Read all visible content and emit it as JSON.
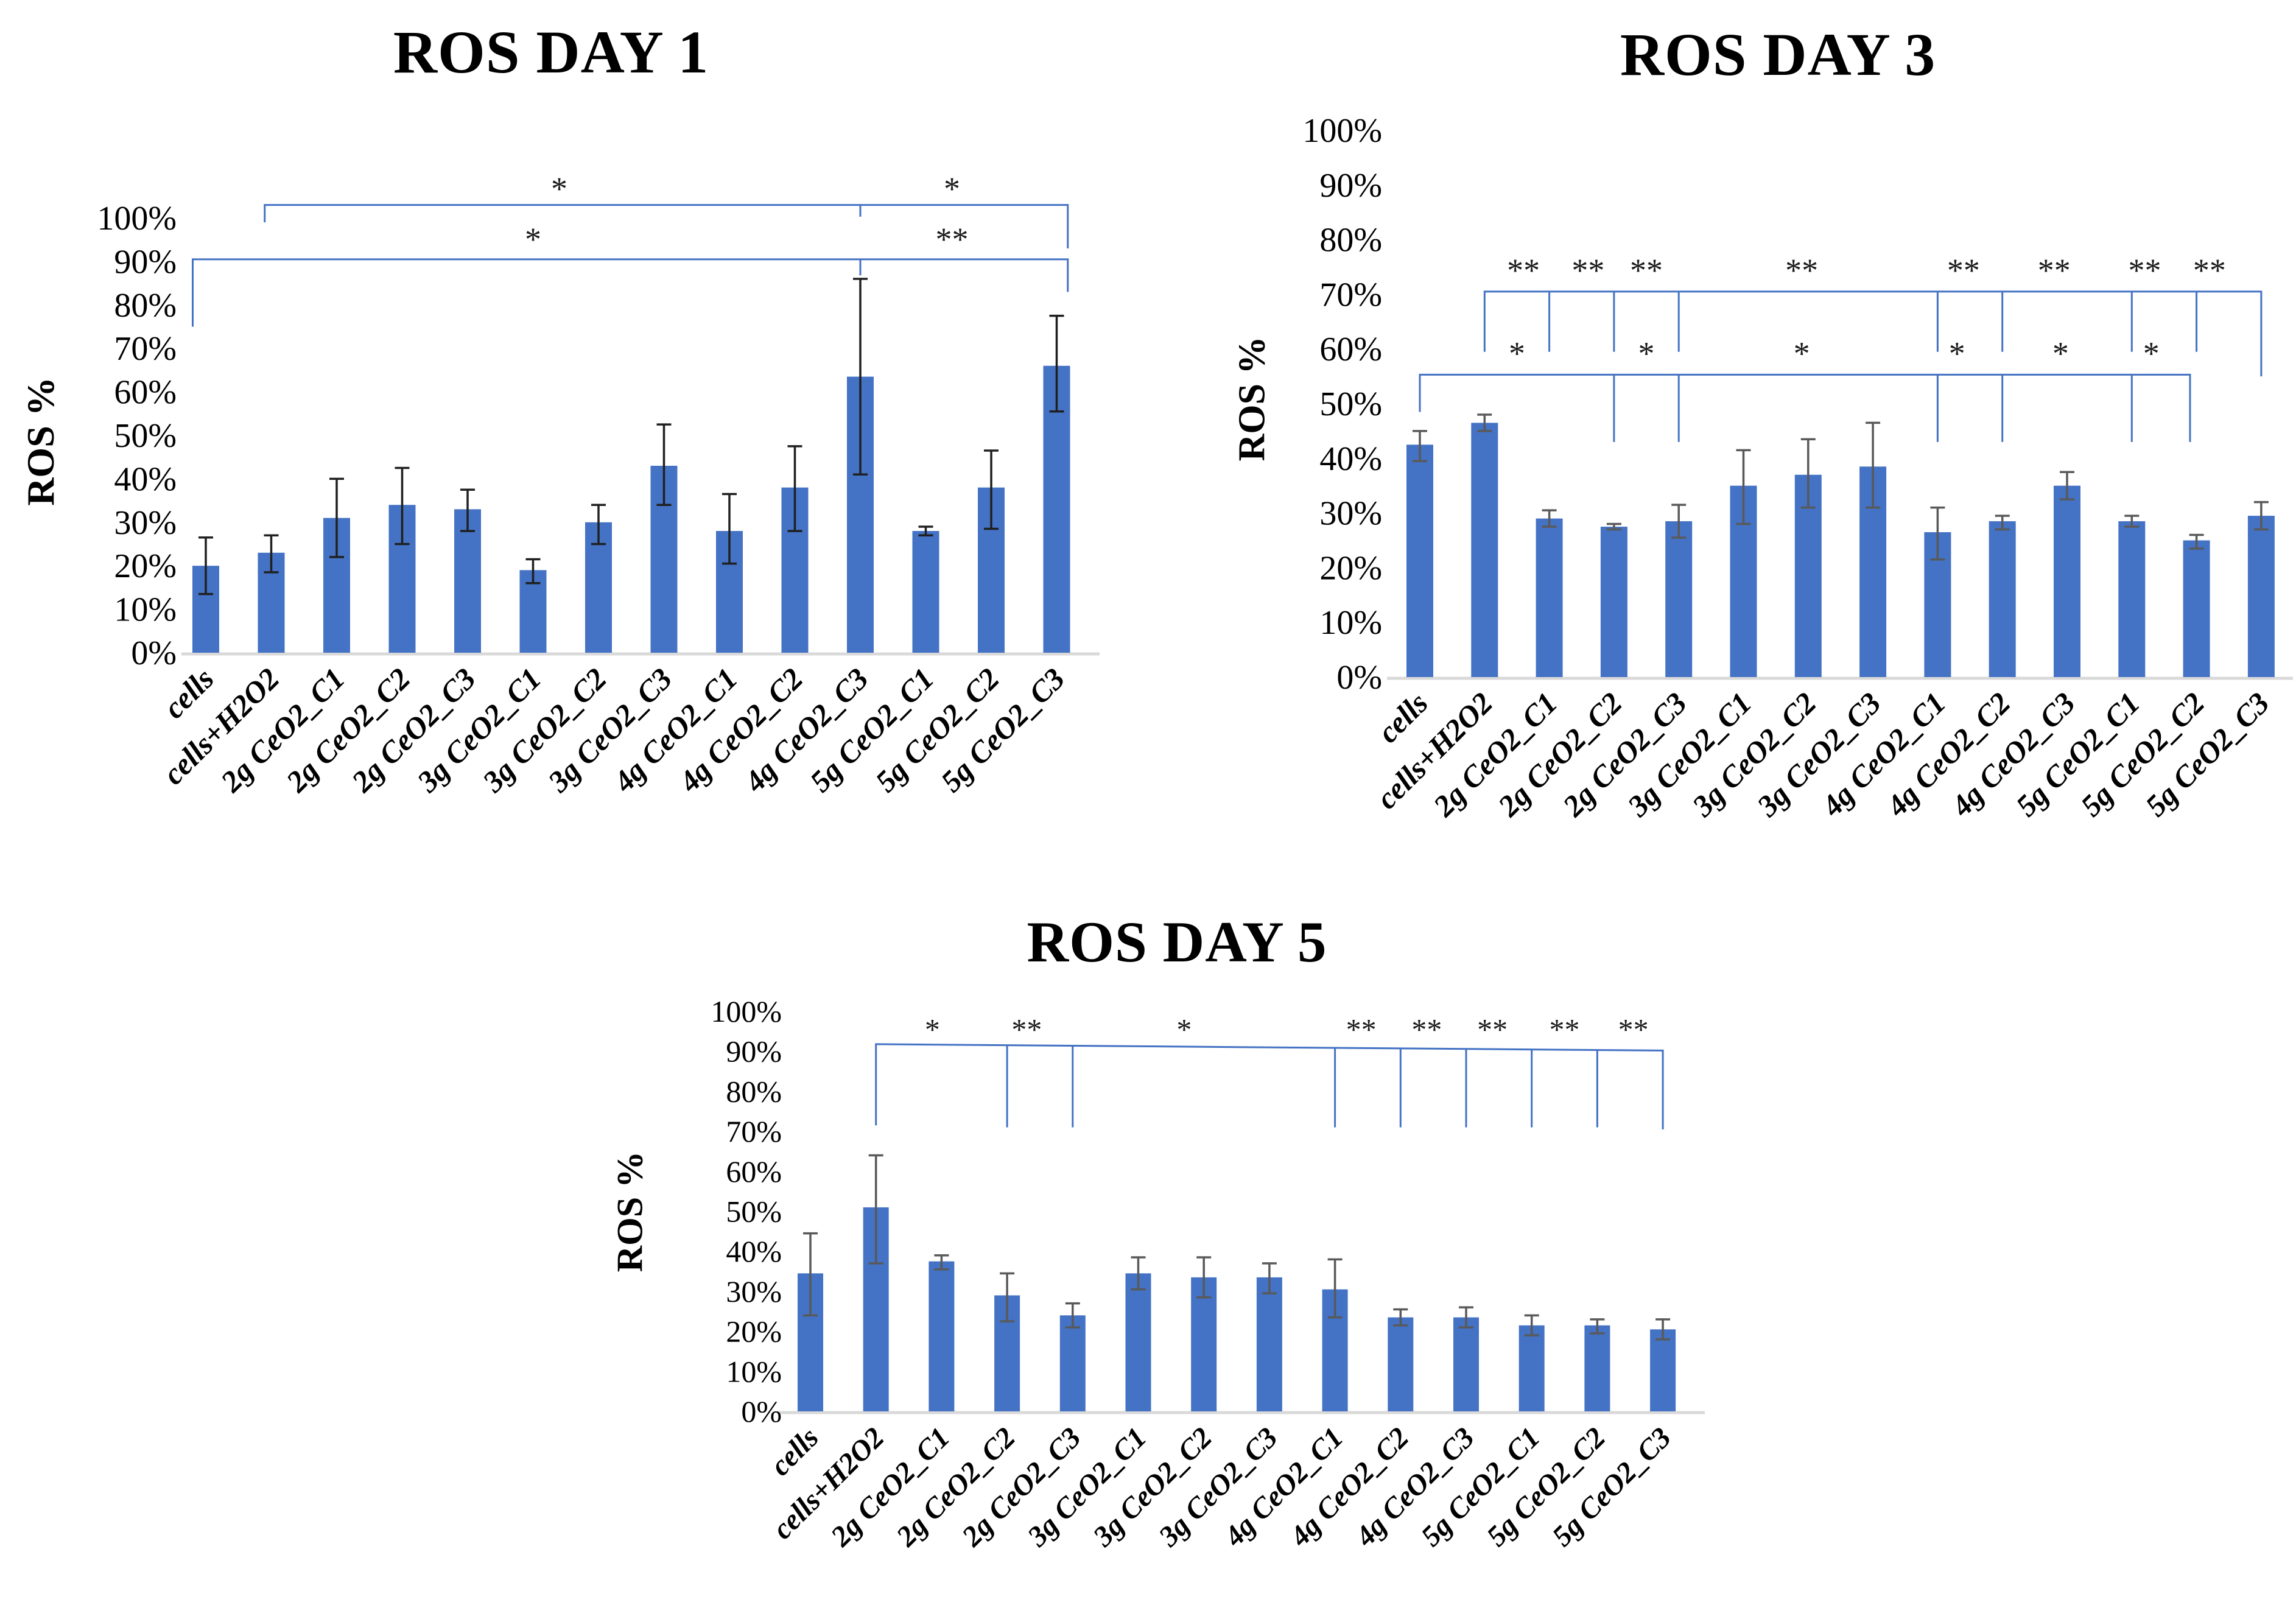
{
  "figure": {
    "background": "#ffffff",
    "bar_color": "#4472C4",
    "bracket_color": "#4472C4",
    "axis_line_color": "#d9d9d9",
    "error_color_day1": "#1f1f1f",
    "error_color_day3": "#595959",
    "error_color_day5": "#595959"
  },
  "y_ticks": [
    "0%",
    "10%",
    "20%",
    "30%",
    "40%",
    "50%",
    "60%",
    "70%",
    "80%",
    "90%",
    "100%"
  ],
  "categories": [
    "cells",
    "cells+H2O2",
    "2g CeO2_C1",
    "2g CeO2_C2",
    "2g CeO2_C3",
    "3g CeO2_C1",
    "3g CeO2_C2",
    "3g CeO2_C3",
    "4g CeO2_C1",
    "4g CeO2_C2",
    "4g CeO2_C3",
    "5g CeO2_C1",
    "5g CeO2_C2",
    "5g CeO2_C3"
  ],
  "chart_data": [
    {
      "id": "day1",
      "type": "bar",
      "title": "ROS DAY 1",
      "ylabel": "ROS %",
      "ylim": [
        0,
        100
      ],
      "y_tick_step": 10,
      "grid": false,
      "legend": "none",
      "bar_color": "#4472C4",
      "error_color": "#1f1f1f",
      "categories": [
        "cells",
        "cells+H2O2",
        "2g CeO2_C1",
        "2g CeO2_C2",
        "2g CeO2_C3",
        "3g CeO2_C1",
        "3g CeO2_C2",
        "3g CeO2_C3",
        "4g CeO2_C1",
        "4g CeO2_C2",
        "4g CeO2_C3",
        "5g CeO2_C1",
        "5g CeO2_C2",
        "5g CeO2_C3"
      ],
      "values": [
        20,
        23,
        31,
        34,
        33,
        19,
        30,
        43,
        28,
        38,
        63.5,
        28,
        38,
        66
      ],
      "error_low": [
        13.5,
        18.5,
        22,
        25,
        28,
        16,
        25,
        34,
        20.5,
        28,
        41,
        27,
        28.5,
        55.5
      ],
      "error_high": [
        26.5,
        27,
        40,
        42.5,
        37.5,
        21.5,
        34,
        52.5,
        36.5,
        47.5,
        86,
        29,
        46.5,
        77.5
      ],
      "significance": [
        {
          "line_pct": 103,
          "from_slot": 0.9,
          "to_slot": 13.17,
          "left_drop_pct": 99,
          "right_drop_pct": 93,
          "ticks": [
            {
              "slot": 10,
              "drop_pct": 100.3
            }
          ],
          "stars": [
            {
              "slot": 5.4,
              "label": "*"
            },
            {
              "slot": 11.4,
              "label": "*"
            }
          ],
          "star_y_pct": 104.2
        },
        {
          "line_pct": 90.5,
          "from_slot": -0.2,
          "to_slot": 13.17,
          "left_drop_pct": 75,
          "right_drop_pct": 83,
          "ticks": [
            {
              "slot": 10,
              "drop_pct": 86.8
            }
          ],
          "stars": [
            {
              "slot": 5.0,
              "label": "*"
            },
            {
              "slot": 11.4,
              "label": "**"
            }
          ],
          "star_y_pct": 92.6
        }
      ]
    },
    {
      "id": "day3",
      "type": "bar",
      "title": "ROS DAY 3",
      "ylabel": "ROS %",
      "ylim": [
        0,
        100
      ],
      "y_tick_step": 10,
      "grid": false,
      "legend": "none",
      "bar_color": "#4472C4",
      "error_color": "#595959",
      "categories": [
        "cells",
        "cells+H2O2",
        "2g CeO2_C1",
        "2g CeO2_C2",
        "2g CeO2_C3",
        "3g CeO2_C1",
        "3g CeO2_C2",
        "3g CeO2_C3",
        "4g CeO2_C1",
        "4g CeO2_C2",
        "4g CeO2_C3",
        "5g CeO2_C1",
        "5g CeO2_C2",
        "5g CeO2_C3"
      ],
      "values": [
        42.5,
        46.5,
        29,
        27.5,
        28.5,
        35,
        37,
        38.5,
        26.5,
        28.5,
        35,
        28.5,
        25,
        29.5
      ],
      "error_low": [
        39.5,
        45,
        27.5,
        27,
        25.5,
        28,
        31,
        31,
        21.5,
        27,
        32.5,
        27.5,
        23.5,
        27
      ],
      "error_high": [
        45,
        48,
        30.5,
        28,
        31.5,
        41.5,
        43.5,
        46.5,
        31,
        29.5,
        37.5,
        29.5,
        26,
        32
      ],
      "significance": [
        {
          "line_pct": 70.5,
          "from_slot": 1,
          "to_slot": 13,
          "left_drop_pct": 59.5,
          "right_drop_pct": 55,
          "ticks": [
            {
              "slot": 2,
              "drop_pct": 59.5
            },
            {
              "slot": 3,
              "drop_pct": 59.5
            },
            {
              "slot": 4,
              "drop_pct": 59.5
            },
            {
              "slot": 8,
              "drop_pct": 59.5
            },
            {
              "slot": 9,
              "drop_pct": 59.5
            },
            {
              "slot": 11,
              "drop_pct": 59.5
            },
            {
              "slot": 12,
              "drop_pct": 59.5
            }
          ],
          "stars": [
            {
              "slot": 1.6,
              "label": "**"
            },
            {
              "slot": 2.6,
              "label": "**"
            },
            {
              "slot": 3.5,
              "label": "**"
            },
            {
              "slot": 5.9,
              "label": "**"
            },
            {
              "slot": 8.4,
              "label": "**"
            },
            {
              "slot": 9.8,
              "label": "**"
            },
            {
              "slot": 11.2,
              "label": "**"
            },
            {
              "slot": 12.2,
              "label": "**"
            }
          ],
          "star_y_pct": 72.4
        },
        {
          "line_pct": 55.3,
          "from_slot": 0,
          "to_slot": 11.9,
          "left_drop_pct": 48.5,
          "right_drop_pct": 43,
          "ticks": [
            {
              "slot": 3,
              "drop_pct": 43
            },
            {
              "slot": 4,
              "drop_pct": 43
            },
            {
              "slot": 8,
              "drop_pct": 43
            },
            {
              "slot": 9,
              "drop_pct": 43
            },
            {
              "slot": 11,
              "drop_pct": 43
            }
          ],
          "stars": [
            {
              "slot": 1.5,
              "label": "*"
            },
            {
              "slot": 3.5,
              "label": "*"
            },
            {
              "slot": 5.9,
              "label": "*"
            },
            {
              "slot": 8.3,
              "label": "*"
            },
            {
              "slot": 9.9,
              "label": "*"
            },
            {
              "slot": 11.3,
              "label": "*"
            }
          ],
          "star_y_pct": 57.2
        }
      ]
    },
    {
      "id": "day5",
      "type": "bar",
      "title": "ROS DAY 5",
      "ylabel": "ROS %",
      "ylim": [
        0,
        100
      ],
      "y_tick_step": 10,
      "grid": false,
      "legend": "none",
      "bar_color": "#4472C4",
      "error_color": "#595959",
      "categories": [
        "cells",
        "cells+H2O2",
        "2g CeO2_C1",
        "2g CeO2_C2",
        "2g CeO2_C3",
        "3g CeO2_C1",
        "3g CeO2_C2",
        "3g CeO2_C3",
        "4g CeO2_C1",
        "4g CeO2_C2",
        "4g CeO2_C3",
        "5g CeO2_C1",
        "5g CeO2_C2",
        "5g CeO2_C3"
      ],
      "values": [
        34.5,
        51,
        37.5,
        29,
        24,
        34.5,
        33.5,
        33.5,
        30.5,
        23.5,
        23.5,
        21.5,
        21.5,
        20.5
      ],
      "error_low": [
        24,
        37,
        35.5,
        22.5,
        21,
        30.5,
        28.5,
        29.5,
        23.5,
        21.5,
        21,
        19,
        19.5,
        18
      ],
      "error_high": [
        44.5,
        64,
        39,
        34.5,
        27,
        38.5,
        38.5,
        37,
        38,
        25.5,
        26,
        24,
        23,
        23
      ],
      "significance": [
        {
          "line_pct": 91.8,
          "line_pct_right": 90.2,
          "from_slot": 1,
          "to_slot": 13,
          "left_drop_pct": 71.5,
          "right_drop_pct": 70.5,
          "ticks": [
            {
              "slot": 3,
              "drop_pct": 71
            },
            {
              "slot": 4,
              "drop_pct": 71
            },
            {
              "slot": 8,
              "drop_pct": 71
            },
            {
              "slot": 9,
              "drop_pct": 71
            },
            {
              "slot": 10,
              "drop_pct": 71
            },
            {
              "slot": 11,
              "drop_pct": 71
            },
            {
              "slot": 12,
              "drop_pct": 71
            }
          ],
          "stars": [
            {
              "slot": 1.86,
              "label": "*"
            },
            {
              "slot": 3.3,
              "label": "**"
            },
            {
              "slot": 5.7,
              "label": "*"
            },
            {
              "slot": 8.4,
              "label": "**"
            },
            {
              "slot": 9.4,
              "label": "**"
            },
            {
              "slot": 10.4,
              "label": "**"
            },
            {
              "slot": 11.5,
              "label": "**"
            },
            {
              "slot": 12.55,
              "label": "**"
            }
          ],
          "star_y_pct": 92.9
        }
      ]
    }
  ]
}
